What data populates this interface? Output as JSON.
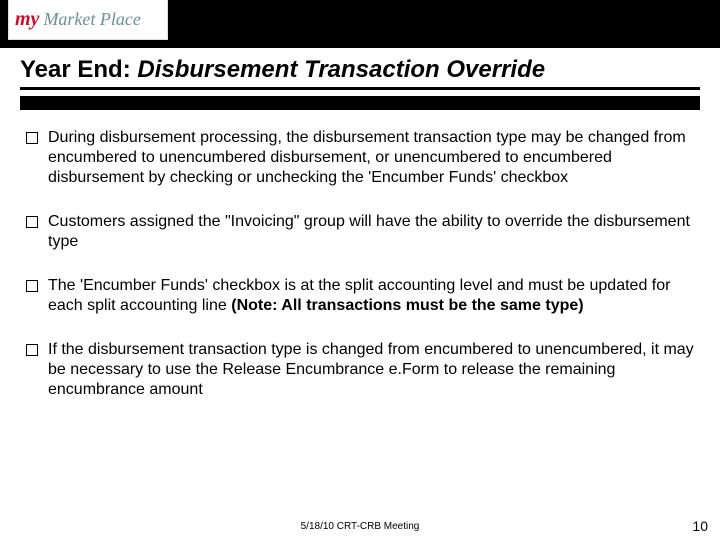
{
  "logo": {
    "text1": "my",
    "text2": "Market Place"
  },
  "title": {
    "prefix": "Year End:",
    "main": " Disbursement Transaction Override"
  },
  "bullets": [
    "During disbursement processing, the disbursement transaction type may be changed from encumbered to unencumbered disbursement, or unencumbered to encumbered disbursement by checking or unchecking the 'Encumber Funds' checkbox",
    "Customers assigned the \"Invoicing\" group will have the ability to override the disbursement type",
    "",
    "If the disbursement transaction type is changed from encumbered to unencumbered, it may be necessary to use the Release Encumbrance e.Form to release the remaining encumbrance amount"
  ],
  "bullet3": {
    "pre": "The 'Encumber Funds' checkbox is at the split accounting level and must be updated for each split accounting line ",
    "note": "(Note:  All transactions must be the same type)"
  },
  "footer": {
    "meeting": "5/18/10 CRT-CRB Meeting",
    "page": "10"
  }
}
